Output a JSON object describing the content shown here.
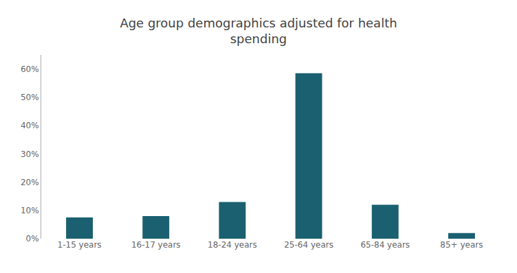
{
  "chart_data": {
    "type": "bar",
    "title": "Age group demographics adjusted for health\nspending",
    "categories": [
      "1-15 years",
      "16-17 years",
      "18-24 years",
      "25-64 years",
      "65-84 years",
      "85+ years"
    ],
    "values": [
      7.5,
      8.0,
      13.0,
      58.5,
      12.0,
      2.0
    ],
    "color": "#1a6070",
    "ylim": [
      0,
      65
    ],
    "yticks": [
      {
        "value": 0,
        "label": "0%"
      },
      {
        "value": 10,
        "label": "10%"
      },
      {
        "value": 20,
        "label": "20%"
      },
      {
        "value": 30,
        "label": "30%"
      },
      {
        "value": 40,
        "label": "40%"
      },
      {
        "value": 50,
        "label": "50%"
      },
      {
        "value": 60,
        "label": "60%"
      }
    ],
    "grid": false
  }
}
